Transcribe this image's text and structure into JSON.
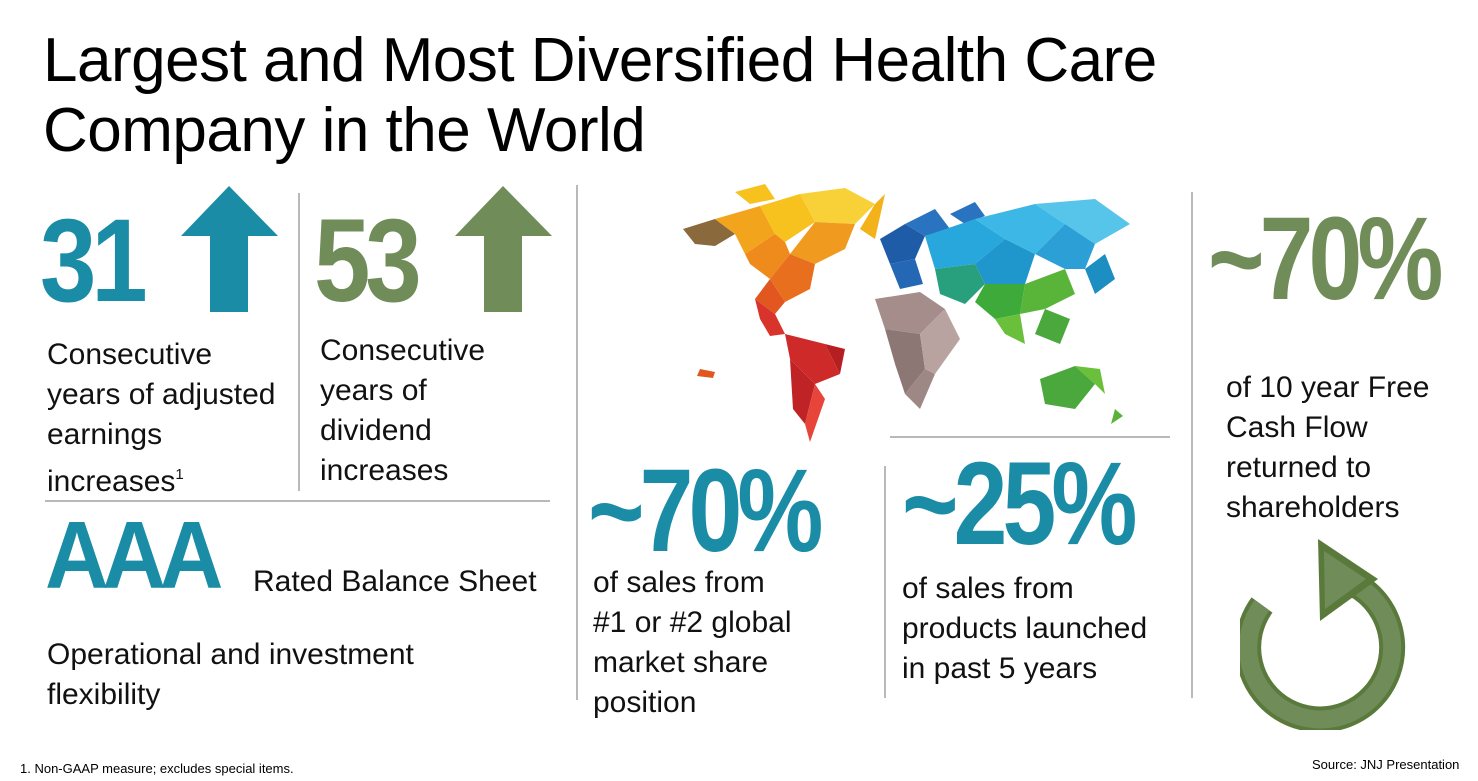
{
  "colors": {
    "teal": "#1b8ca6",
    "green": "#708c58",
    "divider": "#b9b9b9"
  },
  "title": {
    "line1": "Largest and Most Diversified Health Care",
    "line2": "Company in the World"
  },
  "stats": {
    "earnings": {
      "number": "31",
      "icon": "up-arrow-icon",
      "label_lines": [
        "Consecutive",
        "years of adjusted",
        "earnings",
        "increases"
      ],
      "footnote_mark": "1"
    },
    "dividends": {
      "number": "53",
      "icon": "up-arrow-icon",
      "label_lines": [
        "Consecutive",
        "years of",
        "dividend",
        "increases"
      ]
    },
    "rating": {
      "number": "AAA",
      "label": "Rated Balance Sheet",
      "description_lines": [
        "Operational and investment",
        "flexibility"
      ]
    },
    "market_share": {
      "number": "~70%",
      "label_lines": [
        "of sales from",
        "#1 or #2 global",
        "market share",
        "position"
      ]
    },
    "new_products": {
      "number": "~25%",
      "label_lines": [
        "of sales from",
        "products launched",
        "in past 5 years"
      ]
    },
    "free_cash_flow": {
      "number": "~70%",
      "label_lines": [
        "of 10 year Free",
        "Cash Flow",
        "returned to",
        "shareholders"
      ],
      "icon": "circular-arrow-icon"
    }
  },
  "map": {
    "icon": "world-map-icon"
  },
  "footer": {
    "footnote": "1.  Non-GAAP measure; excludes special items.",
    "source": "Source: JNJ Presentation"
  }
}
